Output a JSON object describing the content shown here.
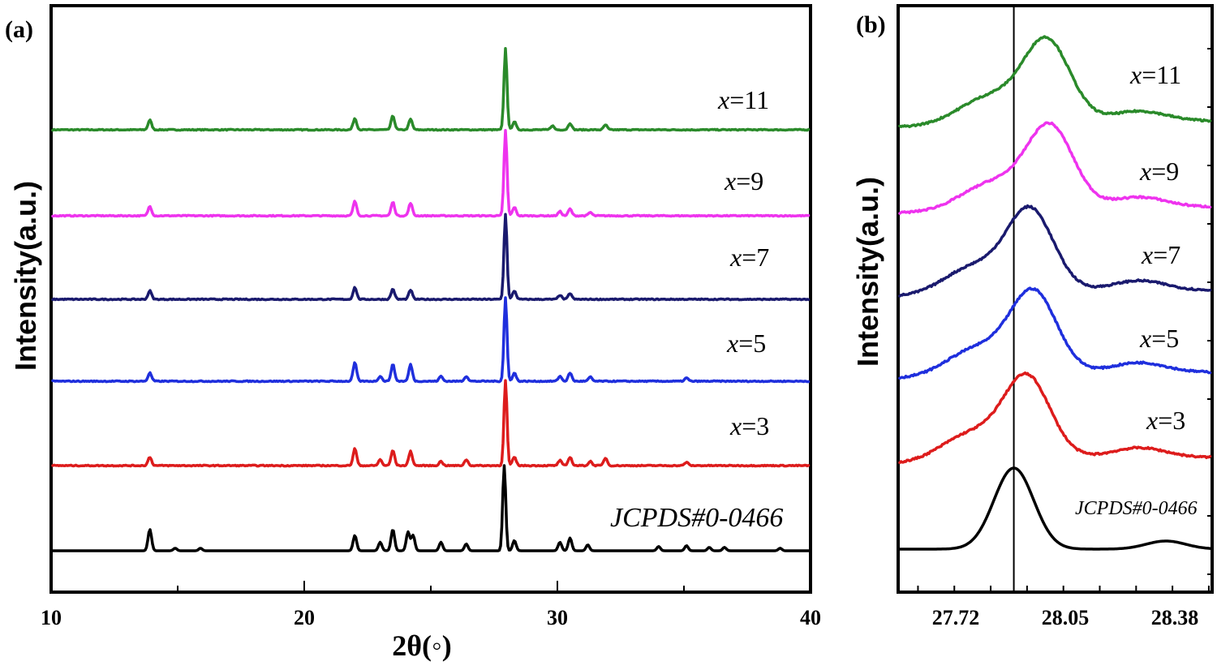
{
  "chart_data": [
    {
      "panel": "(a)",
      "type": "line",
      "xlabel": "2θ(◦)",
      "ylabel": "Intensity(a.u.)",
      "xlim": [
        10,
        40
      ],
      "xticks": [
        10,
        20,
        30,
        40
      ],
      "grid": false,
      "series": [
        {
          "name": "x=11",
          "color": "#2a8a2a",
          "baseline_offset": 5,
          "peaks": [
            [
              13.9,
              0.12
            ],
            [
              22.0,
              0.14
            ],
            [
              23.5,
              0.17
            ],
            [
              24.2,
              0.13
            ],
            [
              27.95,
              1.0
            ],
            [
              28.3,
              0.1
            ],
            [
              29.8,
              0.05
            ],
            [
              30.5,
              0.08
            ],
            [
              31.9,
              0.06
            ]
          ]
        },
        {
          "name": "x=9",
          "color": "#ee33ee",
          "baseline_offset": 4,
          "peaks": [
            [
              13.9,
              0.11
            ],
            [
              22.0,
              0.17
            ],
            [
              23.5,
              0.16
            ],
            [
              24.2,
              0.15
            ],
            [
              27.95,
              1.0
            ],
            [
              28.3,
              0.1
            ],
            [
              30.1,
              0.05
            ],
            [
              30.5,
              0.08
            ],
            [
              31.3,
              0.04
            ]
          ]
        },
        {
          "name": "x=7",
          "color": "#1a1a6e",
          "baseline_offset": 3,
          "peaks": [
            [
              13.9,
              0.1
            ],
            [
              22.0,
              0.14
            ],
            [
              23.5,
              0.12
            ],
            [
              24.2,
              0.11
            ],
            [
              27.95,
              1.0
            ],
            [
              28.3,
              0.1
            ],
            [
              30.1,
              0.05
            ],
            [
              30.5,
              0.07
            ]
          ]
        },
        {
          "name": "x=5",
          "color": "#1f2fdd",
          "baseline_offset": 2,
          "peaks": [
            [
              13.9,
              0.1
            ],
            [
              22.0,
              0.22
            ],
            [
              23.0,
              0.06
            ],
            [
              23.5,
              0.2
            ],
            [
              24.2,
              0.2
            ],
            [
              25.4,
              0.06
            ],
            [
              26.4,
              0.06
            ],
            [
              27.95,
              1.0
            ],
            [
              28.3,
              0.1
            ],
            [
              30.1,
              0.06
            ],
            [
              30.5,
              0.1
            ],
            [
              31.3,
              0.05
            ],
            [
              35.1,
              0.04
            ]
          ]
        },
        {
          "name": "x=3",
          "color": "#dd1c1c",
          "baseline_offset": 1,
          "peaks": [
            [
              13.9,
              0.1
            ],
            [
              22.0,
              0.2
            ],
            [
              23.0,
              0.07
            ],
            [
              23.5,
              0.18
            ],
            [
              24.2,
              0.17
            ],
            [
              25.4,
              0.05
            ],
            [
              26.4,
              0.07
            ],
            [
              27.95,
              1.0
            ],
            [
              28.3,
              0.1
            ],
            [
              30.1,
              0.06
            ],
            [
              30.5,
              0.1
            ],
            [
              31.3,
              0.05
            ],
            [
              31.9,
              0.09
            ],
            [
              35.1,
              0.04
            ]
          ]
        },
        {
          "name": "JCPDS#0-0466",
          "color": "#000000",
          "baseline_offset": 0,
          "peaks": [
            [
              13.9,
              0.25
            ],
            [
              14.9,
              0.03
            ],
            [
              15.9,
              0.03
            ],
            [
              22.0,
              0.18
            ],
            [
              23.0,
              0.1
            ],
            [
              23.5,
              0.25
            ],
            [
              24.1,
              0.22
            ],
            [
              24.3,
              0.18
            ],
            [
              25.4,
              0.1
            ],
            [
              26.4,
              0.08
            ],
            [
              27.9,
              1.0
            ],
            [
              28.3,
              0.12
            ],
            [
              30.1,
              0.1
            ],
            [
              30.5,
              0.15
            ],
            [
              31.2,
              0.07
            ],
            [
              34.0,
              0.05
            ],
            [
              35.1,
              0.06
            ],
            [
              36.0,
              0.04
            ],
            [
              36.6,
              0.04
            ],
            [
              38.8,
              0.03
            ]
          ]
        }
      ]
    },
    {
      "panel": "(b)",
      "type": "line",
      "xlabel": "",
      "ylabel": "Intensity(a.u.)",
      "xlim": [
        27.55,
        28.5
      ],
      "xticks": [
        27.72,
        28.05,
        28.38
      ],
      "xtick_labels": [
        "27.72",
        "28.05",
        "28.38"
      ],
      "reference_line_x": 27.9,
      "grid": false,
      "series": [
        {
          "name": "x=11",
          "color": "#2a8a2a",
          "peak_x": 28.0
        },
        {
          "name": "x=9",
          "color": "#ee33ee",
          "peak_x": 28.01
        },
        {
          "name": "x=7",
          "color": "#1a1a6e",
          "peak_x": 27.95
        },
        {
          "name": "x=5",
          "color": "#1f2fdd",
          "peak_x": 27.96
        },
        {
          "name": "x=3",
          "color": "#dd1c1c",
          "peak_x": 27.94
        },
        {
          "name": "JCPDS#0-0466",
          "color": "#000000",
          "peak_x": 27.9
        }
      ]
    }
  ],
  "labels": {
    "panel_a": "(a)",
    "panel_b": "(b)",
    "xlabel_a": "2θ(◦)",
    "ylabel": "Intensity(a.u.)",
    "series_a": [
      {
        "prefix": "x",
        "suffix": "=11"
      },
      {
        "prefix": "x",
        "suffix": "=9"
      },
      {
        "prefix": "x",
        "suffix": "=7"
      },
      {
        "prefix": "x",
        "suffix": "=5"
      },
      {
        "prefix": "x",
        "suffix": "=3"
      }
    ],
    "ref_label": "JCPDS#0-0466",
    "xticks_a": [
      "10",
      "20",
      "30",
      "40"
    ],
    "xticks_b": [
      "27.72",
      "28.05",
      "28.38"
    ]
  }
}
